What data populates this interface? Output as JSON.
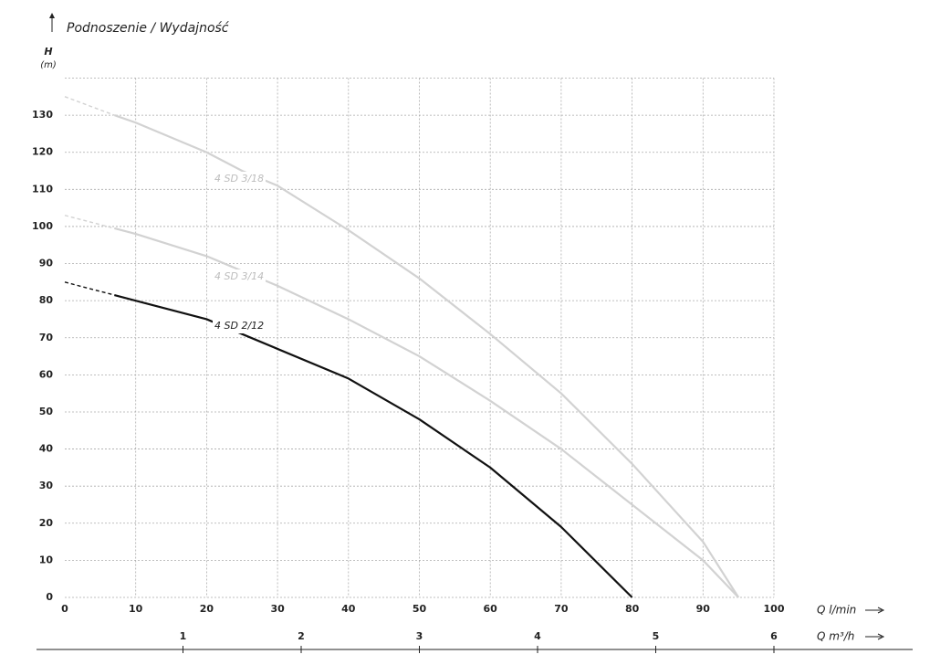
{
  "chart_data": {
    "type": "line",
    "title": "Podnoszenie / Wydajność",
    "y_label": "H",
    "y_unit": "(m)",
    "x_label": "Q l/min",
    "x2_label": "Q m³/h",
    "x": [
      0,
      7,
      10,
      20,
      25,
      30,
      40,
      50,
      60,
      70,
      80,
      90,
      95
    ],
    "series": [
      {
        "name": "4 SD 3/18",
        "color": "#d2d2d2",
        "label_color": "#bdbdbd",
        "dashed_segment_end_index": 1,
        "values": [
          135,
          130,
          128,
          120,
          115,
          111,
          99,
          86,
          71,
          55,
          36,
          15,
          0
        ]
      },
      {
        "name": "4 SD 3/14",
        "color": "#d2d2d2",
        "label_color": "#bdbdbd",
        "dashed_segment_end_index": 1,
        "values": [
          103,
          99.5,
          98,
          92,
          88,
          84,
          75,
          65,
          53,
          40,
          25,
          10,
          0
        ]
      },
      {
        "name": "4 SD 2/12",
        "color": "#111111",
        "label_color": "#222222",
        "dashed_segment_end_index": 1,
        "values": [
          85,
          81.5,
          80,
          75,
          71,
          67,
          59,
          48,
          35,
          19,
          0,
          null,
          null
        ]
      }
    ],
    "xlim": [
      0,
      100
    ],
    "xticks": [
      0,
      10,
      20,
      30,
      40,
      50,
      60,
      70,
      80,
      90,
      100
    ],
    "ylim": [
      0,
      140
    ],
    "yticks": [
      0,
      10,
      20,
      30,
      40,
      50,
      60,
      70,
      80,
      90,
      100,
      110,
      120,
      130
    ],
    "x2lim": [
      0,
      6
    ],
    "x2ticks": [
      1,
      2,
      3,
      4,
      5,
      6
    ],
    "grid": true
  }
}
